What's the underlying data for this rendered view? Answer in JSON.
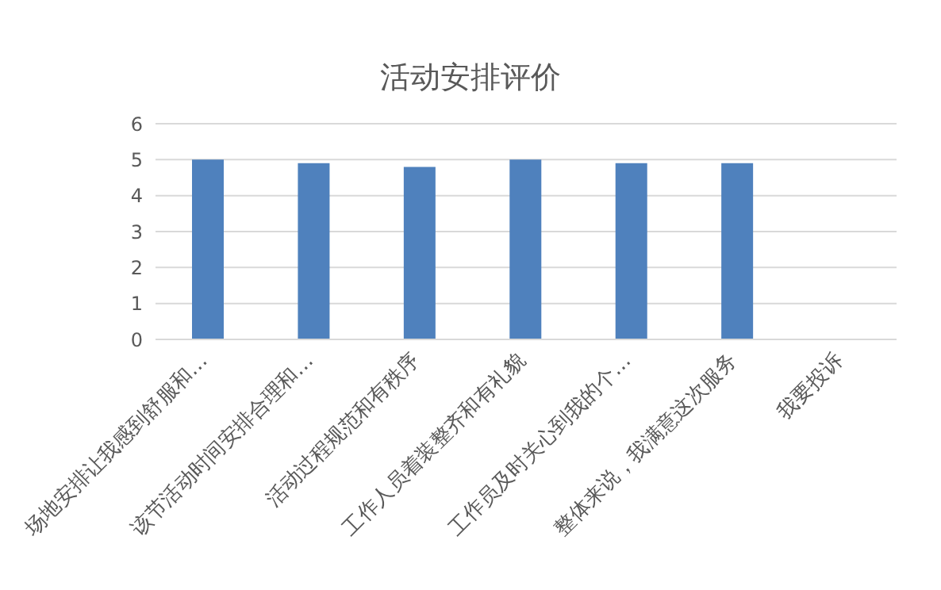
{
  "chart_data": {
    "type": "bar",
    "title": "活动安排评价",
    "categories": [
      "场地安排让我感到舒服和…",
      "该节活动时间安排合理和…",
      "活动过程规范和有秩序",
      "工作人员着装整齐和有礼貌",
      "工作员及时关心到我的个…",
      "整体来说，我满意这次服务",
      "我要投诉"
    ],
    "values": [
      5,
      4.9,
      4.8,
      5,
      4.9,
      4.9,
      null
    ],
    "color": "#4f81bd",
    "ylim": [
      0,
      6
    ],
    "yticks": [
      0,
      1,
      2,
      3,
      4,
      5,
      6
    ],
    "grid": "y",
    "legend": false
  }
}
